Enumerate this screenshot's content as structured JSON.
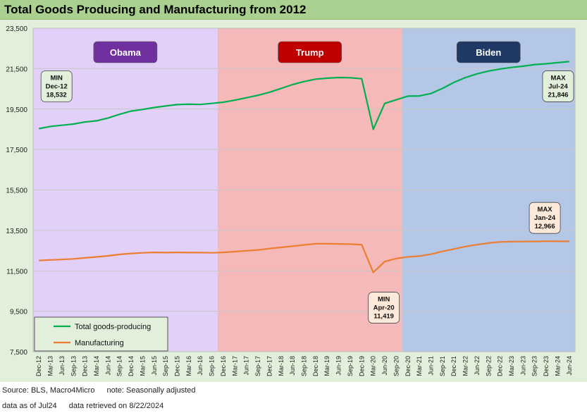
{
  "title": "Total Goods Producing and Manufacturing from 2012",
  "chart_data": {
    "type": "line",
    "title": "Total Goods Producing and Manufacturing from 2012",
    "ylim": [
      7500,
      23500
    ],
    "yticks": [
      "7,500",
      "9,500",
      "11,500",
      "13,500",
      "15,500",
      "17,500",
      "19,500",
      "21,500",
      "23,500"
    ],
    "ytick_values": [
      7500,
      9500,
      11500,
      13500,
      15500,
      17500,
      19500,
      21500,
      23500
    ],
    "xlabels": [
      "Dec-12",
      "Mar-13",
      "Jun-13",
      "Sep-13",
      "Dec-13",
      "Mar-14",
      "Jun-14",
      "Sep-14",
      "Dec-14",
      "Mar-15",
      "Jun-15",
      "Sep-15",
      "Dec-15",
      "Mar-16",
      "Jun-16",
      "Sep-16",
      "Dec-16",
      "Mar-17",
      "Jun-17",
      "Sep-17",
      "Dec-17",
      "Mar-18",
      "Jun-18",
      "Sep-18",
      "Dec-18",
      "Mar-19",
      "Jun-19",
      "Sep-19",
      "Dec-19",
      "Mar-20",
      "Jun-20",
      "Sep-20",
      "Dec-20",
      "Mar-21",
      "Jun-21",
      "Sep-21",
      "Dec-21",
      "Mar-22",
      "Jun-22",
      "Sep-22",
      "Dec-22",
      "Mar-23",
      "Jun-23",
      "Sep-23",
      "Dec-23",
      "Mar-24",
      "Jun-24"
    ],
    "grid": true,
    "legend_position": "bottom-left",
    "periods": [
      {
        "name": "Obama",
        "start": 0,
        "end": 16,
        "color": "#e2d0f8",
        "label_color": "#7030a0"
      },
      {
        "name": "Trump",
        "start": 16,
        "end": 32,
        "color": "#f4b9b8",
        "label_color": "#c00000"
      },
      {
        "name": "Biden",
        "start": 32,
        "end": 47,
        "color": "#b4c7e7",
        "label_color": "#1f3864"
      }
    ],
    "series": [
      {
        "name": "Total goods-producing",
        "color": "#00b050",
        "values": [
          18532,
          18640,
          18700,
          18760,
          18860,
          18920,
          19060,
          19240,
          19400,
          19480,
          19580,
          19650,
          19720,
          19740,
          19730,
          19780,
          19840,
          19940,
          20060,
          20180,
          20330,
          20520,
          20710,
          20860,
          20980,
          21030,
          21060,
          21050,
          21000,
          18500,
          19780,
          19960,
          20140,
          20150,
          20270,
          20520,
          20820,
          21060,
          21240,
          21380,
          21480,
          21560,
          21620,
          21700,
          21740,
          21800,
          21846
        ]
      },
      {
        "name": "Manufacturing",
        "color": "#ed7d31",
        "values": [
          12010,
          12040,
          12060,
          12090,
          12140,
          12190,
          12240,
          12310,
          12360,
          12390,
          12410,
          12400,
          12410,
          12400,
          12400,
          12390,
          12410,
          12450,
          12490,
          12530,
          12600,
          12660,
          12720,
          12780,
          12840,
          12840,
          12830,
          12820,
          12790,
          11419,
          11960,
          12110,
          12190,
          12230,
          12320,
          12460,
          12580,
          12700,
          12790,
          12870,
          12930,
          12940,
          12950,
          12950,
          12966,
          12960,
          12960
        ]
      }
    ],
    "annotations": [
      {
        "lines": [
          "MIN",
          "Dec-12",
          "18,532"
        ],
        "series": 0,
        "index": 0
      },
      {
        "lines": [
          "MAX",
          "Jul-24",
          "21,846"
        ],
        "series": 0,
        "index": 46
      },
      {
        "lines": [
          "MAX",
          "Jan-24",
          "12,966"
        ],
        "series": 1,
        "index": 44
      },
      {
        "lines": [
          "MIN",
          "Apr-20",
          "11,419"
        ],
        "series": 1,
        "index": 29
      }
    ]
  },
  "footer": {
    "line1_source": "Source: BLS, Macro4Micro",
    "line1_note": "note: Seasonally adjusted",
    "line2_asof": "data as of Jul24",
    "line2_retrieved": "data retrieved on 8/22/2024"
  }
}
